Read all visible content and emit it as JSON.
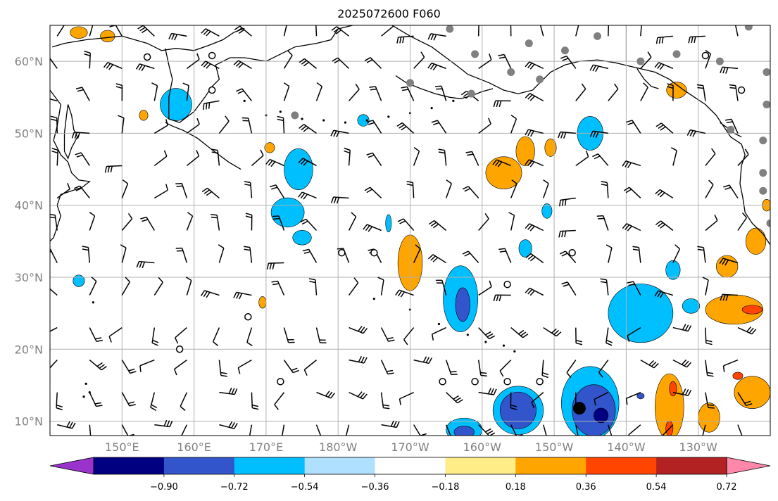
{
  "title": "2025072600 F060",
  "map": {
    "lon_range": [
      140,
      240
    ],
    "lat_range": [
      8,
      65
    ],
    "lon_ticks": [
      {
        "value": 150,
        "label": "150°E"
      },
      {
        "value": 160,
        "label": "160°E"
      },
      {
        "value": 170,
        "label": "170°E"
      },
      {
        "value": 180,
        "label": "180°W"
      },
      {
        "value": 190,
        "label": "170°W"
      },
      {
        "value": 200,
        "label": "160°W"
      },
      {
        "value": 210,
        "label": "150°W"
      },
      {
        "value": 220,
        "label": "140°W"
      },
      {
        "value": 230,
        "label": "130°W"
      }
    ],
    "lat_ticks": [
      {
        "value": 10,
        "label": "10°N"
      },
      {
        "value": 20,
        "label": "20°N"
      },
      {
        "value": 30,
        "label": "30°N"
      },
      {
        "value": 40,
        "label": "40°N"
      },
      {
        "value": 50,
        "label": "50°N"
      },
      {
        "value": 60,
        "label": "60°N"
      }
    ],
    "grid": true,
    "colors": {
      "land_outline": "#000000",
      "gridline": "#b0b0b0"
    }
  },
  "colorbar": {
    "boundaries": [
      -0.9,
      -0.72,
      -0.54,
      -0.36,
      -0.18,
      0.18,
      0.36,
      0.54,
      0.72,
      0.9
    ],
    "tick_labels": [
      "−0.90",
      "−0.72",
      "−0.54",
      "−0.36",
      "−0.18",
      "0.18",
      "0.36",
      "0.54",
      "0.72",
      "0.90"
    ],
    "colors": [
      "#9933cc",
      "#000080",
      "#3355cc",
      "#00bfff",
      "#b0e0ff",
      "#ffffff",
      "#ffee88",
      "#ffa500",
      "#ff4500",
      "#b22222",
      "#ff88aa"
    ],
    "extend": "both"
  },
  "features": {
    "blobs": [
      {
        "lon": 157.5,
        "lat": 54,
        "rx": 2.2,
        "ry": 2.2,
        "color": "#00bfff"
      },
      {
        "lon": 144,
        "lat": 64,
        "rx": 1.2,
        "ry": 0.8,
        "color": "#ffa500"
      },
      {
        "lon": 148,
        "lat": 63.5,
        "rx": 1,
        "ry": 0.8,
        "color": "#ffa500"
      },
      {
        "lon": 153,
        "lat": 52.5,
        "rx": 0.6,
        "ry": 0.7,
        "color": "#ffa500"
      },
      {
        "lon": 170.5,
        "lat": 48,
        "rx": 0.7,
        "ry": 0.7,
        "color": "#ffa500"
      },
      {
        "lon": 174.5,
        "lat": 45,
        "rx": 2,
        "ry": 2.8,
        "color": "#00bfff"
      },
      {
        "lon": 173,
        "lat": 39,
        "rx": 2.3,
        "ry": 2,
        "color": "#00bfff"
      },
      {
        "lon": 175,
        "lat": 35.5,
        "rx": 1.3,
        "ry": 1,
        "color": "#00bfff"
      },
      {
        "lon": 183.5,
        "lat": 51.8,
        "rx": 0.8,
        "ry": 0.8,
        "color": "#00bfff"
      },
      {
        "lon": 187,
        "lat": 37.5,
        "rx": 0.4,
        "ry": 1.2,
        "color": "#00bfff"
      },
      {
        "lon": 144,
        "lat": 29.5,
        "rx": 0.8,
        "ry": 0.8,
        "color": "#00bfff"
      },
      {
        "lon": 190,
        "lat": 32,
        "rx": 1.7,
        "ry": 3.8,
        "color": "#ffa500"
      },
      {
        "lon": 169.5,
        "lat": 26.5,
        "rx": 0.5,
        "ry": 0.8,
        "color": "#ffa500"
      },
      {
        "lon": 197,
        "lat": 27,
        "rx": 2.4,
        "ry": 4.5,
        "color": "#00bfff"
      },
      {
        "lon": 197.3,
        "lat": 26.2,
        "rx": 1,
        "ry": 2.3,
        "color": "#3355cc"
      },
      {
        "lon": 203,
        "lat": 44.5,
        "rx": 2.5,
        "ry": 2.2,
        "color": "#ffa500"
      },
      {
        "lon": 206,
        "lat": 47.5,
        "rx": 1.3,
        "ry": 2,
        "color": "#ffa500"
      },
      {
        "lon": 209.5,
        "lat": 48,
        "rx": 0.8,
        "ry": 1.2,
        "color": "#ffa500"
      },
      {
        "lon": 215,
        "lat": 50,
        "rx": 1.8,
        "ry": 2.3,
        "color": "#00bfff"
      },
      {
        "lon": 209,
        "lat": 39.2,
        "rx": 0.7,
        "ry": 1,
        "color": "#00bfff"
      },
      {
        "lon": 206,
        "lat": 34,
        "rx": 0.9,
        "ry": 1.2,
        "color": "#00bfff"
      },
      {
        "lon": 222,
        "lat": 25,
        "rx": 4.5,
        "ry": 4,
        "color": "#00bfff"
      },
      {
        "lon": 226.5,
        "lat": 31,
        "rx": 1,
        "ry": 1.3,
        "color": "#00bfff"
      },
      {
        "lon": 229,
        "lat": 26,
        "rx": 1.2,
        "ry": 1,
        "color": "#00bfff"
      },
      {
        "lon": 215,
        "lat": 12.5,
        "rx": 4,
        "ry": 5,
        "color": "#00bfff"
      },
      {
        "lon": 215.5,
        "lat": 11.5,
        "rx": 3,
        "ry": 3.5,
        "color": "#3355cc"
      },
      {
        "lon": 216.5,
        "lat": 10.8,
        "rx": 1,
        "ry": 1,
        "color": "#000080"
      },
      {
        "lon": 205,
        "lat": 11.5,
        "rx": 3.5,
        "ry": 3.3,
        "color": "#00bfff"
      },
      {
        "lon": 205,
        "lat": 11.5,
        "rx": 2.5,
        "ry": 2.5,
        "color": "#3355cc"
      },
      {
        "lon": 197.5,
        "lat": 8.8,
        "rx": 2.5,
        "ry": 1.6,
        "color": "#00bfff"
      },
      {
        "lon": 197.5,
        "lat": 8.5,
        "rx": 1.4,
        "ry": 0.8,
        "color": "#3355cc"
      },
      {
        "lon": 226,
        "lat": 12,
        "rx": 2,
        "ry": 4.5,
        "color": "#ffa500"
      },
      {
        "lon": 226.5,
        "lat": 14.5,
        "rx": 0.5,
        "ry": 1,
        "color": "#ff4500"
      },
      {
        "lon": 226,
        "lat": 9,
        "rx": 0.5,
        "ry": 1,
        "color": "#ff4500"
      },
      {
        "lon": 231.5,
        "lat": 10.5,
        "rx": 1.5,
        "ry": 2,
        "color": "#ffa500"
      },
      {
        "lon": 237.5,
        "lat": 14,
        "rx": 2.5,
        "ry": 2.2,
        "color": "#ffa500"
      },
      {
        "lon": 235.5,
        "lat": 16.3,
        "rx": 0.7,
        "ry": 0.5,
        "color": "#ff4500"
      },
      {
        "lon": 235,
        "lat": 25.5,
        "rx": 4,
        "ry": 2,
        "color": "#ffa500"
      },
      {
        "lon": 237.5,
        "lat": 25.5,
        "rx": 1.4,
        "ry": 0.6,
        "color": "#ff4500"
      },
      {
        "lon": 234,
        "lat": 31.5,
        "rx": 1.5,
        "ry": 1.5,
        "color": "#ffa500"
      },
      {
        "lon": 238,
        "lat": 35,
        "rx": 1.4,
        "ry": 1.8,
        "color": "#ffa500"
      },
      {
        "lon": 239.5,
        "lat": 40,
        "rx": 0.6,
        "ry": 0.8,
        "color": "#ffa500"
      },
      {
        "lon": 227,
        "lat": 56,
        "rx": 1.4,
        "ry": 1.1,
        "color": "#ffa500"
      },
      {
        "lon": 222,
        "lat": 13.5,
        "rx": 0.5,
        "ry": 0.4,
        "color": "#3355cc"
      }
    ],
    "markers": [
      {
        "lon": 153.5,
        "lat": 60.6,
        "kind": "calm"
      },
      {
        "lon": 162.5,
        "lat": 60.8,
        "kind": "calm"
      },
      {
        "lon": 162.5,
        "lat": 56.0,
        "kind": "calm"
      },
      {
        "lon": 180.5,
        "lat": 33.4,
        "kind": "calm"
      },
      {
        "lon": 185.0,
        "lat": 33.4,
        "kind": "calm"
      },
      {
        "lon": 167.5,
        "lat": 24.5,
        "kind": "calm"
      },
      {
        "lon": 158.0,
        "lat": 20.0,
        "kind": "calm"
      },
      {
        "lon": 172.0,
        "lat": 15.5,
        "kind": "calm"
      },
      {
        "lon": 194.5,
        "lat": 15.5,
        "kind": "calm"
      },
      {
        "lon": 199.0,
        "lat": 15.5,
        "kind": "calm"
      },
      {
        "lon": 203.5,
        "lat": 15.5,
        "kind": "calm"
      },
      {
        "lon": 208.0,
        "lat": 15.5,
        "kind": "calm"
      },
      {
        "lon": 212.5,
        "lat": 33.4,
        "kind": "calm"
      },
      {
        "lon": 203.5,
        "lat": 29.0,
        "kind": "calm"
      },
      {
        "lon": 231.0,
        "lat": 60.8,
        "kind": "calm"
      },
      {
        "lon": 236.0,
        "lat": 56.0,
        "kind": "calm"
      },
      {
        "lon": 213.5,
        "lat": 11.8,
        "kind": "storm"
      },
      {
        "lon": 195.5,
        "lat": 64.5,
        "kind": "station"
      },
      {
        "lon": 199.0,
        "lat": 61.0,
        "kind": "station"
      },
      {
        "lon": 204.0,
        "lat": 58.5,
        "kind": "station"
      },
      {
        "lon": 206.5,
        "lat": 62.5,
        "kind": "station"
      },
      {
        "lon": 211.5,
        "lat": 61.5,
        "kind": "station"
      },
      {
        "lon": 216.0,
        "lat": 63.5,
        "kind": "station"
      },
      {
        "lon": 222.0,
        "lat": 60.0,
        "kind": "station"
      },
      {
        "lon": 227.0,
        "lat": 61.0,
        "kind": "station"
      },
      {
        "lon": 233.0,
        "lat": 60.0,
        "kind": "station"
      },
      {
        "lon": 239.5,
        "lat": 58.5,
        "kind": "station"
      },
      {
        "lon": 239.5,
        "lat": 54.0,
        "kind": "station"
      },
      {
        "lon": 234.5,
        "lat": 50.5,
        "kind": "station"
      },
      {
        "lon": 239.0,
        "lat": 49.0,
        "kind": "station"
      },
      {
        "lon": 239.0,
        "lat": 44.5,
        "kind": "station"
      },
      {
        "lon": 239.0,
        "lat": 42.0,
        "kind": "station"
      },
      {
        "lon": 240.0,
        "lat": 37.5,
        "kind": "station"
      },
      {
        "lon": 190.0,
        "lat": 57.0,
        "kind": "station"
      },
      {
        "lon": 198.5,
        "lat": 55.5,
        "kind": "station"
      },
      {
        "lon": 208.0,
        "lat": 57.5,
        "kind": "station"
      },
      {
        "lon": 174.0,
        "lat": 52.5,
        "kind": "station"
      },
      {
        "lon": 237.0,
        "lat": 64.8,
        "kind": "station"
      }
    ]
  }
}
